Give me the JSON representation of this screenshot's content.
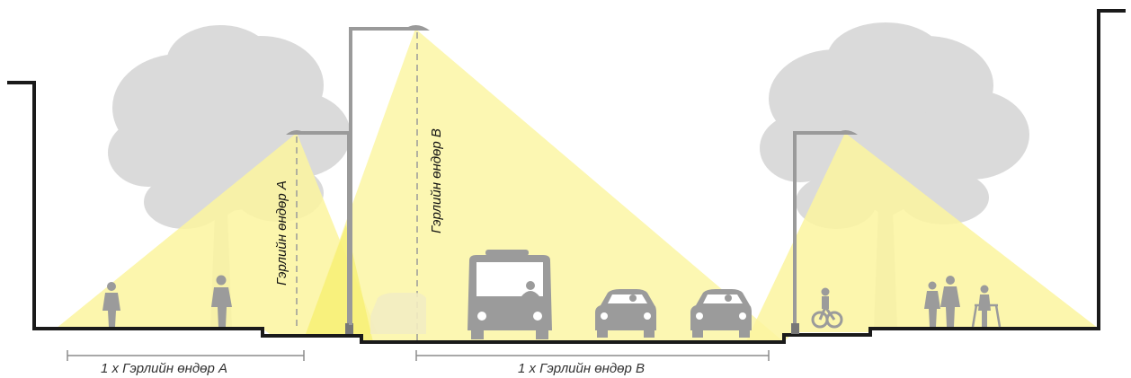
{
  "labels": {
    "height_a": "Гэрлийн өндөр A",
    "height_b": "Гэрлийн өндөр B",
    "span_a": "1 x Гэрлийн өндөр A",
    "span_b": "1 x Гэрлийн өндөр B"
  },
  "colors": {
    "light": "#fbf59f",
    "light_strong": "#f7ef6e",
    "ground": "#1a1a1a",
    "pole": "#9a9a9a",
    "tree": "#d9d9d9",
    "figure": "#9b9b9b",
    "dim": "#8c8c8c"
  }
}
